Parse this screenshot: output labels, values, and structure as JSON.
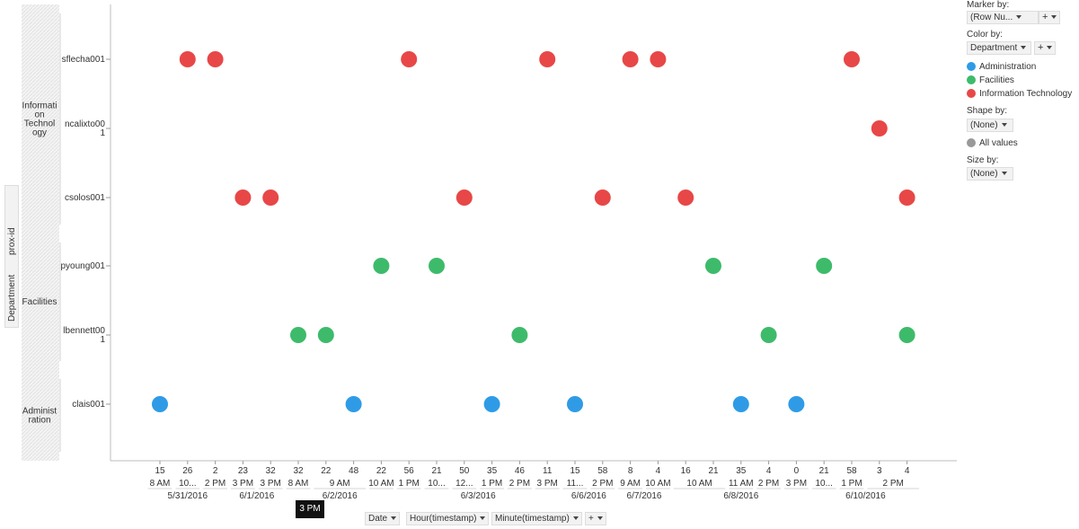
{
  "chart_data": {
    "type": "scatter",
    "colors": {
      "Administration": "#2f9be6",
      "Facilities": "#3dbb6b",
      "Information Technology": "#e84747"
    },
    "y_axis": {
      "groups": [
        {
          "name": "Information Technology",
          "label_lines": [
            "Informati",
            "on",
            "Technol",
            "ogy"
          ],
          "rows": [
            "sflecha001",
            "ncalixto001",
            "csolos001"
          ]
        },
        {
          "name": "Facilities",
          "label_lines": [
            "Facilities"
          ],
          "rows": [
            "pyoung001",
            "lbennett001"
          ]
        },
        {
          "name": "Administration",
          "label_lines": [
            "Administ",
            "ration"
          ],
          "rows": [
            "clais001"
          ]
        }
      ],
      "row_label_lines": {
        "sflecha001": [
          "sflecha001"
        ],
        "ncalixto001": [
          "ncalixto00",
          "1"
        ],
        "csolos001": [
          "csolos001"
        ],
        "pyoung001": [
          "pyoung001"
        ],
        "lbennett001": [
          "lbennett00",
          "1"
        ],
        "clais001": [
          "clais001"
        ]
      }
    },
    "x_axis": {
      "minute_labels": [
        "15",
        "26",
        "2",
        "23",
        "32",
        "32",
        "22",
        "48",
        "22",
        "56",
        "21",
        "50",
        "35",
        "46",
        "11",
        "15",
        "58",
        "8",
        "4",
        "16",
        "21",
        "35",
        "4",
        "0",
        "21",
        "58",
        "3",
        "4"
      ],
      "hour_labels": [
        {
          "label": "8 AM",
          "from": 0,
          "to": 0
        },
        {
          "label": "10...",
          "from": 1,
          "to": 1
        },
        {
          "label": "2 PM",
          "from": 2,
          "to": 2
        },
        {
          "label": "3 PM",
          "from": 3,
          "to": 3
        },
        {
          "label": "3 PM",
          "from": 4,
          "to": 4
        },
        {
          "label": "8 AM",
          "from": 5,
          "to": 5
        },
        {
          "label": "9 AM",
          "from": 6,
          "to": 7
        },
        {
          "label": "10 AM",
          "from": 8,
          "to": 8
        },
        {
          "label": "1 PM",
          "from": 9,
          "to": 9
        },
        {
          "label": "10...",
          "from": 10,
          "to": 10
        },
        {
          "label": "12...",
          "from": 11,
          "to": 11
        },
        {
          "label": "1 PM",
          "from": 12,
          "to": 12
        },
        {
          "label": "2 PM",
          "from": 13,
          "to": 13
        },
        {
          "label": "3 PM",
          "from": 14,
          "to": 14
        },
        {
          "label": "11...",
          "from": 15,
          "to": 15
        },
        {
          "label": "2 PM",
          "from": 16,
          "to": 16
        },
        {
          "label": "9 AM",
          "from": 17,
          "to": 17
        },
        {
          "label": "10 AM",
          "from": 18,
          "to": 18
        },
        {
          "label": "10 AM",
          "from": 19,
          "to": 20
        },
        {
          "label": "11 AM",
          "from": 21,
          "to": 21
        },
        {
          "label": "2 PM",
          "from": 22,
          "to": 22
        },
        {
          "label": "3 PM",
          "from": 23,
          "to": 23
        },
        {
          "label": "10...",
          "from": 24,
          "to": 24
        },
        {
          "label": "1 PM",
          "from": 25,
          "to": 25
        },
        {
          "label": "2 PM",
          "from": 26,
          "to": 27
        }
      ],
      "date_labels": [
        {
          "label": "5/31/2016",
          "from": 0,
          "to": 2
        },
        {
          "label": "6/1/2016",
          "from": 3,
          "to": 4
        },
        {
          "label": "6/2/2016",
          "from": 5,
          "to": 8
        },
        {
          "label": "6/3/2016",
          "from": 9,
          "to": 14
        },
        {
          "label": "6/6/2016",
          "from": 15,
          "to": 16
        },
        {
          "label": "6/7/2016",
          "from": 17,
          "to": 18
        },
        {
          "label": "6/8/2016",
          "from": 19,
          "to": 23
        },
        {
          "label": "6/10/2016",
          "from": 24,
          "to": 27
        }
      ]
    },
    "points": [
      {
        "x": 0,
        "row": "clais001",
        "department": "Administration"
      },
      {
        "x": 1,
        "row": "sflecha001",
        "department": "Information Technology"
      },
      {
        "x": 2,
        "row": "sflecha001",
        "department": "Information Technology"
      },
      {
        "x": 3,
        "row": "csolos001",
        "department": "Information Technology"
      },
      {
        "x": 4,
        "row": "csolos001",
        "department": "Information Technology"
      },
      {
        "x": 5,
        "row": "lbennett001",
        "department": "Facilities"
      },
      {
        "x": 6,
        "row": "lbennett001",
        "department": "Facilities"
      },
      {
        "x": 7,
        "row": "clais001",
        "department": "Administration"
      },
      {
        "x": 8,
        "row": "pyoung001",
        "department": "Facilities"
      },
      {
        "x": 9,
        "row": "sflecha001",
        "department": "Information Technology"
      },
      {
        "x": 10,
        "row": "pyoung001",
        "department": "Facilities"
      },
      {
        "x": 11,
        "row": "csolos001",
        "department": "Information Technology"
      },
      {
        "x": 12,
        "row": "clais001",
        "department": "Administration"
      },
      {
        "x": 13,
        "row": "lbennett001",
        "department": "Facilities"
      },
      {
        "x": 14,
        "row": "sflecha001",
        "department": "Information Technology"
      },
      {
        "x": 15,
        "row": "clais001",
        "department": "Administration"
      },
      {
        "x": 16,
        "row": "csolos001",
        "department": "Information Technology"
      },
      {
        "x": 17,
        "row": "sflecha001",
        "department": "Information Technology"
      },
      {
        "x": 18,
        "row": "sflecha001",
        "department": "Information Technology"
      },
      {
        "x": 19,
        "row": "csolos001",
        "department": "Information Technology"
      },
      {
        "x": 20,
        "row": "pyoung001",
        "department": "Facilities"
      },
      {
        "x": 21,
        "row": "clais001",
        "department": "Administration"
      },
      {
        "x": 22,
        "row": "lbennett001",
        "department": "Facilities"
      },
      {
        "x": 23,
        "row": "clais001",
        "department": "Administration"
      },
      {
        "x": 24,
        "row": "pyoung001",
        "department": "Facilities"
      },
      {
        "x": 25,
        "row": "sflecha001",
        "department": "Information Technology"
      },
      {
        "x": 26,
        "row": "ncalixto001",
        "department": "Information Technology"
      },
      {
        "x": 27,
        "row": "lbennett001",
        "department": "Facilities"
      },
      {
        "x": 27,
        "row": "csolos001",
        "department": "Information Technology"
      }
    ]
  },
  "controls": {
    "marker_by": {
      "title": "Marker by:",
      "value": "(Row Nu..."
    },
    "color_by": {
      "title": "Color by:",
      "value": "Department"
    },
    "legend": [
      {
        "label": "Administration",
        "color": "#2f9be6"
      },
      {
        "label": "Facilities",
        "color": "#3dbb6b"
      },
      {
        "label": "Information Technology",
        "color": "#e84747"
      }
    ],
    "shape_by": {
      "title": "Shape by:",
      "value": "(None)"
    },
    "shape_legend": {
      "label": "All values",
      "color": "#999999"
    },
    "size_by": {
      "title": "Size by:",
      "value": "(None)"
    },
    "plus": "+",
    "x_selectors": [
      "Date",
      "Hour(timestamp)",
      "Minute(timestamp)"
    ],
    "y_selectors": [
      "Department",
      "prox-id"
    ],
    "tooltip": "3 PM"
  }
}
